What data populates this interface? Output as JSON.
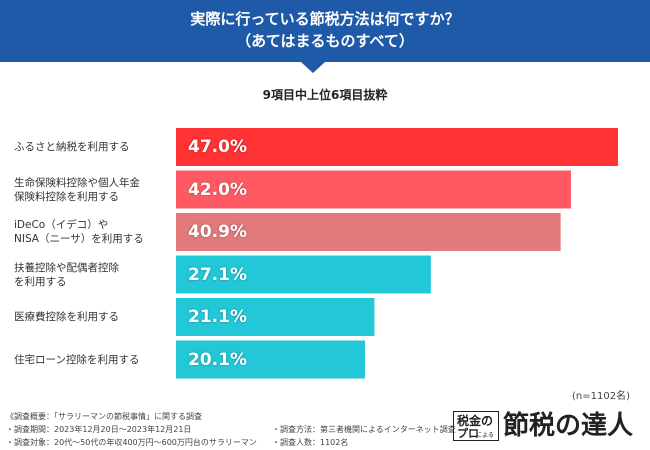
{
  "header": {
    "title_line1": "実際に行っている節税方法は何ですか？",
    "title_line2": "（あてはまるものすべて）"
  },
  "subtitle": "9項目中上位6項目抜粋",
  "chart_data": {
    "type": "bar",
    "orientation": "horizontal",
    "categories": [
      [
        "ふるさと納税を利用する"
      ],
      [
        "生命保険料控除や個人年金",
        "保険料控除を利用する"
      ],
      [
        "iDeCo（イデコ）や",
        "NISA（ニーサ）を利用する"
      ],
      [
        "扶養控除や配偶者控除",
        "を利用する"
      ],
      [
        "医療費控除を利用する"
      ],
      [
        "住宅ローン控除を利用する"
      ]
    ],
    "values": [
      47.0,
      42.0,
      40.9,
      27.1,
      21.1,
      20.1
    ],
    "value_labels": [
      "47.0%",
      "42.0%",
      "40.9%",
      "27.1%",
      "21.1%",
      "20.1%"
    ],
    "colors": [
      "#ff3333",
      "#ff5a64",
      "#e2797a",
      "#22c8d8",
      "#22c8d8",
      "#22c8d8"
    ],
    "unit": "%",
    "xlim": [
      0,
      47.0
    ]
  },
  "sample_note": "(n=1102名)",
  "footer": {
    "left": [
      "《調査概要：「サラリーマンの節税事情」に関する調査",
      "・調査期間：2023年12月20日〜2023年12月21日",
      "・調査対象：20代〜50代の年収400万円〜600万円台のサラリーマン"
    ],
    "right": [
      "・調査方法：第三者機関によるインターネット調査",
      "・調査人数：1102名"
    ]
  },
  "logo": {
    "badge_line1": "税金の",
    "badge_line2": "プロ",
    "badge_small": "による",
    "text": "節税の達人"
  }
}
